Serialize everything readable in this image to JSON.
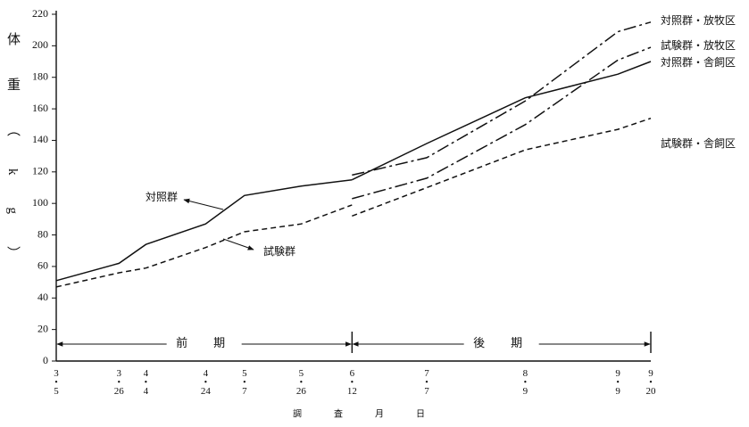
{
  "chart_data": {
    "type": "line",
    "y_label": "体重（kg）",
    "x_label": "調査月日",
    "x": [
      "3・5",
      "3・26",
      "4・4",
      "4・24",
      "5・7",
      "5・26",
      "6・12",
      "7・7",
      "8・9",
      "9・9",
      "9・20"
    ],
    "ylim": [
      0,
      220
    ],
    "yticks": [
      0,
      20,
      40,
      60,
      80,
      100,
      120,
      140,
      160,
      180,
      200,
      220
    ],
    "series": [
      {
        "name": "対照群",
        "color": "#111111",
        "linestyle": "solid",
        "values": [
          51,
          62,
          74,
          87,
          105,
          111,
          115,
          null,
          null,
          null,
          null
        ]
      },
      {
        "name": "試験群",
        "color": "#111111",
        "linestyle": "dashed",
        "values": [
          47,
          56,
          59,
          72,
          82,
          87,
          99,
          null,
          null,
          null,
          null
        ]
      },
      {
        "name": "対照群・放牧区",
        "color": "#111111",
        "linestyle": "dashdot",
        "values": [
          null,
          null,
          null,
          null,
          null,
          null,
          118,
          129,
          165,
          209,
          215
        ]
      },
      {
        "name": "試験群・放牧区",
        "color": "#111111",
        "linestyle": "dashdot",
        "values": [
          null,
          null,
          null,
          null,
          null,
          null,
          103,
          116,
          150,
          191,
          199
        ]
      },
      {
        "name": "対照群・舎飼区",
        "color": "#111111",
        "linestyle": "solid",
        "values": [
          null,
          null,
          null,
          null,
          null,
          null,
          115,
          138,
          167,
          182,
          190
        ]
      },
      {
        "name": "試験群・舎飼区",
        "color": "#111111",
        "linestyle": "dashed",
        "values": [
          null,
          null,
          null,
          null,
          null,
          null,
          92,
          110,
          134,
          147,
          154
        ]
      }
    ],
    "periods": [
      {
        "label": "前　期"
      },
      {
        "label": "後　期"
      }
    ]
  }
}
